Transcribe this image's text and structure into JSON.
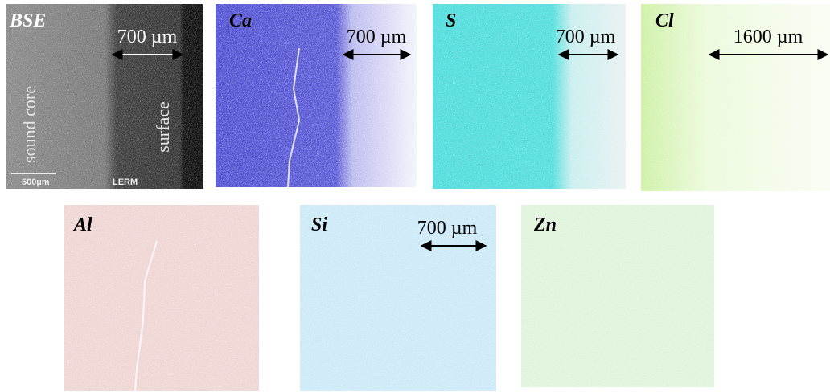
{
  "panels": [
    {
      "label": "BSE",
      "scale": "700 µm",
      "annotations": [
        "sound core",
        "surface",
        "500µm",
        "LERM"
      ]
    },
    {
      "label": "Ca",
      "scale": "700 µm"
    },
    {
      "label": "S",
      "scale": "700 µm"
    },
    {
      "label": "Cl",
      "scale": "1600 µm"
    },
    {
      "label": "Al"
    },
    {
      "label": "Si",
      "scale": "700 µm"
    },
    {
      "label": "Zn"
    }
  ]
}
